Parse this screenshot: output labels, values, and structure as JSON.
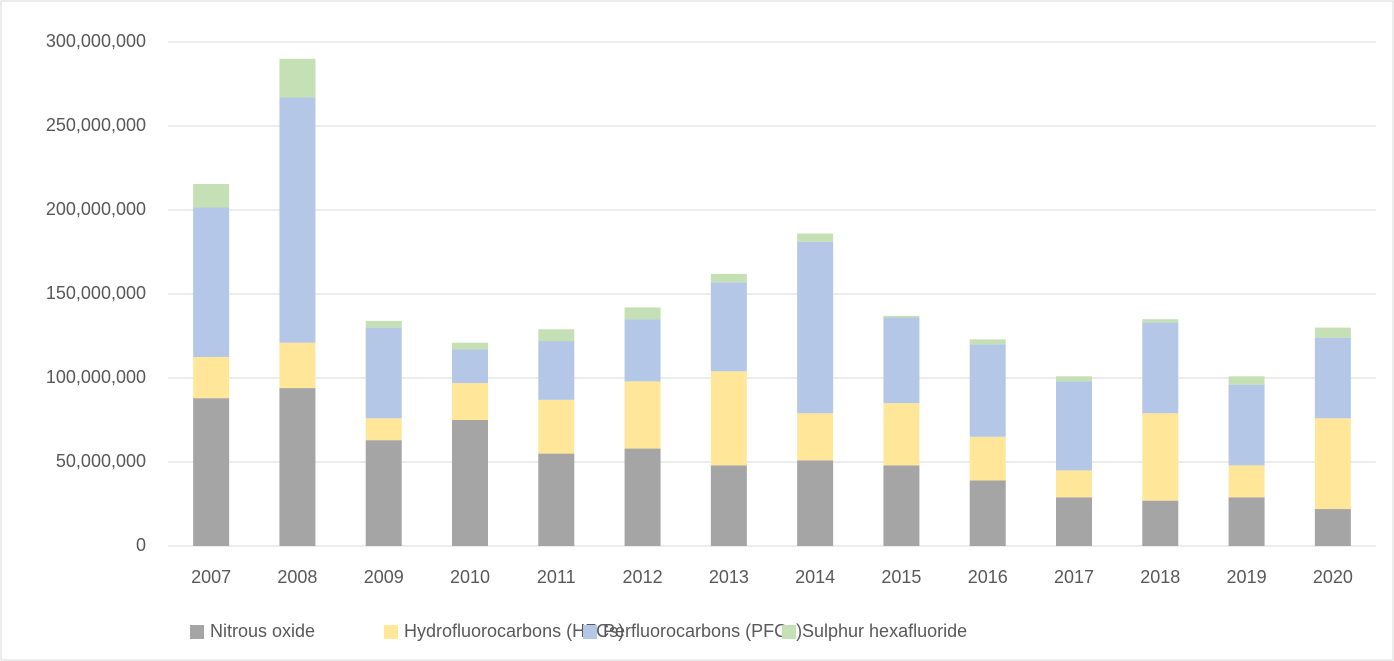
{
  "chart_data": {
    "type": "stacked_bar",
    "categories": [
      "2007",
      "2008",
      "2009",
      "2010",
      "2011",
      "2012",
      "2013",
      "2014",
      "2015",
      "2016",
      "2017",
      "2018",
      "2019",
      "2020"
    ],
    "series": [
      {
        "name": "Nitrous oxide",
        "color": "#a5a5a5",
        "values": [
          88000000,
          94000000,
          63000000,
          75000000,
          55000000,
          58000000,
          48000000,
          51000000,
          48000000,
          39000000,
          29000000,
          27000000,
          29000000,
          22000000
        ]
      },
      {
        "name": "Hydrofluorocarbons (HFCs)",
        "color": "#ffe699",
        "values": [
          24500000,
          27000000,
          13000000,
          22000000,
          32000000,
          40000000,
          56000000,
          28000000,
          37000000,
          26000000,
          16000000,
          52000000,
          19000000,
          54000000
        ]
      },
      {
        "name": "Perfluorocarbons (PFCs)",
        "color": "#b4c7e7",
        "values": [
          89000000,
          146000000,
          54000000,
          20000000,
          35000000,
          37000000,
          53000000,
          102000000,
          51000000,
          55000000,
          53000000,
          54000000,
          48000000,
          48000000
        ]
      },
      {
        "name": "Sulphur hexafluoride",
        "color": "#c5e0b4",
        "values": [
          14000000,
          23000000,
          4000000,
          4000000,
          7000000,
          7000000,
          5000000,
          5000000,
          1000000,
          3000000,
          3000000,
          2000000,
          5000000,
          6000000
        ]
      }
    ],
    "ylim": [
      0,
      300000000
    ],
    "yticks": [
      0,
      {
        "value": 50000000,
        "label": "50,000,000"
      },
      {
        "value": 100000000,
        "label": "100,000,000"
      },
      {
        "value": 150000000,
        "label": "150,000,000"
      },
      {
        "value": 200000000,
        "label": "200,000,000"
      },
      {
        "value": 250000000,
        "label": "250,000,000"
      },
      {
        "value": 300000000,
        "label": "300,000,000"
      }
    ],
    "grid": true,
    "legend": "bottom"
  }
}
